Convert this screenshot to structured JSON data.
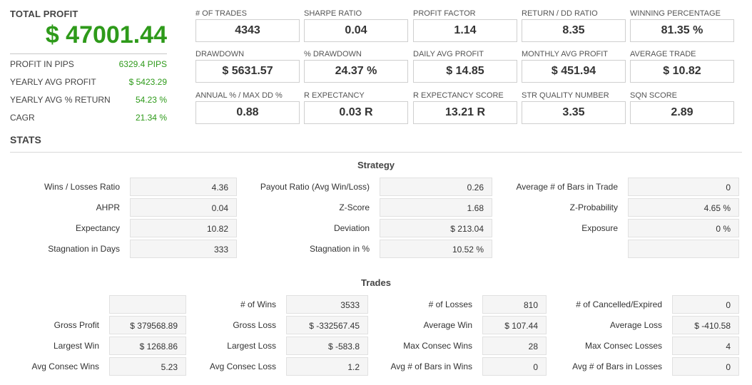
{
  "summary": {
    "total_profit_label": "TOTAL PROFIT",
    "total_profit_value": "$ 47001.44",
    "rows": [
      {
        "label": "PROFIT IN PIPS",
        "value": "6329.4 PIPS"
      },
      {
        "label": "YEARLY AVG PROFIT",
        "value": "$ 5423.29"
      },
      {
        "label": "YEARLY AVG % RETURN",
        "value": "54.23 %"
      },
      {
        "label": "CAGR",
        "value": "21.34 %"
      }
    ]
  },
  "metrics": [
    {
      "label": "# OF TRADES",
      "value": "4343"
    },
    {
      "label": "SHARPE RATIO",
      "value": "0.04"
    },
    {
      "label": "PROFIT FACTOR",
      "value": "1.14"
    },
    {
      "label": "RETURN / DD RATIO",
      "value": "8.35"
    },
    {
      "label": "WINNING PERCENTAGE",
      "value": "81.35 %"
    },
    {
      "label": "DRAWDOWN",
      "value": "$ 5631.57"
    },
    {
      "label": "% DRAWDOWN",
      "value": "24.37 %"
    },
    {
      "label": "DAILY AVG PROFIT",
      "value": "$ 14.85"
    },
    {
      "label": "MONTHLY AVG PROFIT",
      "value": "$ 451.94"
    },
    {
      "label": "AVERAGE TRADE",
      "value": "$ 10.82"
    },
    {
      "label": "ANNUAL % / MAX DD %",
      "value": "0.88"
    },
    {
      "label": "R EXPECTANCY",
      "value": "0.03 R"
    },
    {
      "label": "R EXPECTANCY SCORE",
      "value": "13.21 R"
    },
    {
      "label": "STR QUALITY NUMBER",
      "value": "3.35"
    },
    {
      "label": "SQN SCORE",
      "value": "2.89"
    }
  ],
  "stats_title": "STATS",
  "strategy": {
    "title": "Strategy",
    "rows": [
      [
        {
          "label": "Wins / Losses Ratio",
          "value": "4.36"
        },
        {
          "label": "Payout Ratio (Avg Win/Loss)",
          "value": "0.26"
        },
        {
          "label": "Average # of Bars in Trade",
          "value": "0"
        }
      ],
      [
        {
          "label": "AHPR",
          "value": "0.04"
        },
        {
          "label": "Z-Score",
          "value": "1.68"
        },
        {
          "label": "Z-Probability",
          "value": "4.65 %"
        }
      ],
      [
        {
          "label": "Expectancy",
          "value": "10.82"
        },
        {
          "label": "Deviation",
          "value": "$ 213.04"
        },
        {
          "label": "Exposure",
          "value": "0 %"
        }
      ],
      [
        {
          "label": "Stagnation in Days",
          "value": "333"
        },
        {
          "label": "Stagnation in %",
          "value": "10.52 %"
        },
        {
          "label": "",
          "value": ""
        }
      ]
    ]
  },
  "trades": {
    "title": "Trades",
    "rows": [
      [
        {
          "label": "",
          "value": ""
        },
        {
          "label": "# of Wins",
          "value": "3533"
        },
        {
          "label": "# of Losses",
          "value": "810"
        },
        {
          "label": "# of Cancelled/Expired",
          "value": "0"
        }
      ],
      [
        {
          "label": "Gross Profit",
          "value": "$ 379568.89"
        },
        {
          "label": "Gross Loss",
          "value": "$ -332567.45"
        },
        {
          "label": "Average Win",
          "value": "$ 107.44"
        },
        {
          "label": "Average Loss",
          "value": "$ -410.58"
        }
      ],
      [
        {
          "label": "Largest Win",
          "value": "$ 1268.86"
        },
        {
          "label": "Largest Loss",
          "value": "$ -583.8"
        },
        {
          "label": "Max Consec Wins",
          "value": "28"
        },
        {
          "label": "Max Consec Losses",
          "value": "4"
        }
      ],
      [
        {
          "label": "Avg Consec Wins",
          "value": "5.23"
        },
        {
          "label": "Avg Consec Loss",
          "value": "1.2"
        },
        {
          "label": "Avg # of Bars in Wins",
          "value": "0"
        },
        {
          "label": "Avg # of Bars in Losses",
          "value": "0"
        }
      ]
    ]
  }
}
